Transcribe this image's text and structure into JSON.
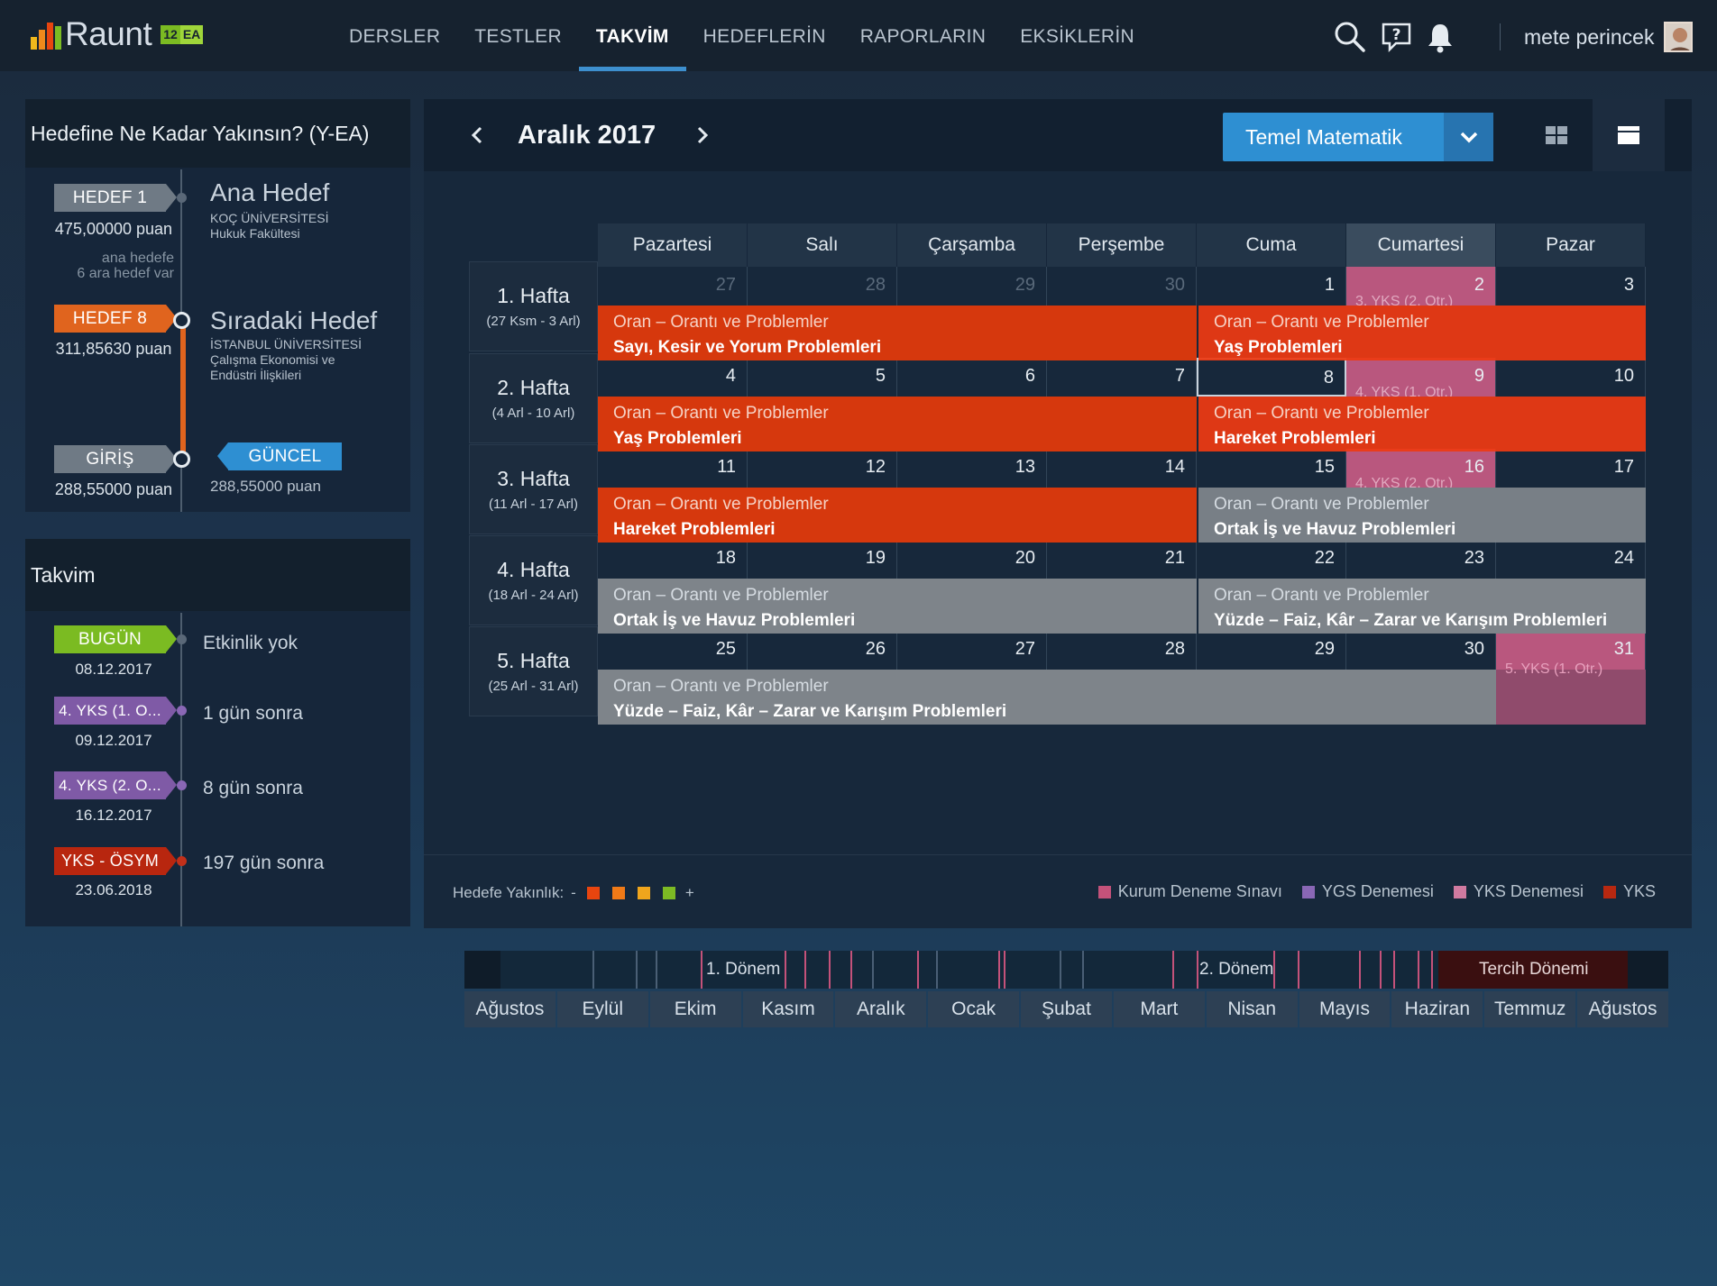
{
  "app": {
    "brand": "Raunt",
    "badge_num": "12",
    "badge_ea": "EA"
  },
  "nav": {
    "items": [
      "DERSLER",
      "TESTLER",
      "TAKVİM",
      "HEDEFLERİN",
      "RAPORLARIN",
      "EKSİKLERİN"
    ],
    "active": "TAKVİM"
  },
  "user": {
    "name": "mete perincek"
  },
  "goal": {
    "title": "Hedefine Ne Kadar Yakınsın? (Y-EA)",
    "h1_tag": "HEDEF 1",
    "h1_score": "475,00000 puan",
    "h1_title": "Ana Hedef",
    "h1_uni": "KOÇ ÜNİVERSİTESİ",
    "h1_dept": "Hukuk Fakültesi",
    "note1": "ana hedefe",
    "note2": "6 ara hedef var",
    "h8_tag": "HEDEF 8",
    "h8_score": "311,85630 puan",
    "h8_title": "Sıradaki Hedef",
    "h8_uni": "İSTANBUL ÜNİVERSİTESİ",
    "h8_dept1": "Çalışma Ekonomisi ve",
    "h8_dept2": "Endüstri İlişkileri",
    "giris_tag": "GİRİŞ",
    "giris_score": "288,55000 puan",
    "guncel_tag": "GÜNCEL",
    "guncel_score": "288,55000 puan"
  },
  "takvim": {
    "title": "Takvim",
    "items": [
      {
        "tag": "BUGÜN",
        "date": "08.12.2017",
        "text": "Etkinlik yok",
        "color": "#7bbb22"
      },
      {
        "tag": "4. YKS (1. O...",
        "date": "09.12.2017",
        "text": "1 gün sonra",
        "color": "#7f5aa6"
      },
      {
        "tag": "4. YKS (2. O...",
        "date": "16.12.2017",
        "text": "8 gün sonra",
        "color": "#7f5aa6"
      },
      {
        "tag": "YKS - ÖSYM",
        "date": "23.06.2018",
        "text": "197 gün sonra",
        "color": "#b8260f"
      }
    ]
  },
  "calendar": {
    "month_title": "Aralık 2017",
    "subject": "Temel Matematik",
    "days": [
      "Pazartesi",
      "Salı",
      "Çarşamba",
      "Perşembe",
      "Cuma",
      "Cumartesi",
      "Pazar"
    ],
    "weeks": [
      {
        "label": "1. Hafta",
        "range": "(27 Ksm - 3 Arl)",
        "dates": [
          "27",
          "28",
          "29",
          "30",
          "1",
          "2",
          "3"
        ]
      },
      {
        "label": "2. Hafta",
        "range": "(4 Arl - 10 Arl)",
        "dates": [
          "4",
          "5",
          "6",
          "7",
          "8",
          "9",
          "10"
        ]
      },
      {
        "label": "3. Hafta",
        "range": "(11 Arl - 17 Arl)",
        "dates": [
          "11",
          "12",
          "13",
          "14",
          "15",
          "16",
          "17"
        ]
      },
      {
        "label": "4. Hafta",
        "range": "(18 Arl - 24 Arl)",
        "dates": [
          "18",
          "19",
          "20",
          "21",
          "22",
          "23",
          "24"
        ]
      },
      {
        "label": "5. Hafta",
        "range": "(25 Arl - 31 Arl)",
        "dates": [
          "25",
          "26",
          "27",
          "28",
          "29",
          "30",
          "31"
        ]
      }
    ],
    "bars": [
      {
        "week": 0,
        "start": 0,
        "span": 4,
        "color": "orange",
        "l1": "Oran – Orantı ve Problemler",
        "l2": "Sayı, Kesir ve Yorum Problemleri"
      },
      {
        "week": 0,
        "start": 4,
        "span": 3,
        "color": "orange",
        "l1": "Oran – Orantı ve Problemler",
        "l2": "Yaş Problemleri"
      },
      {
        "week": 1,
        "start": 0,
        "span": 4,
        "color": "orange",
        "l1": "Oran – Orantı ve Problemler",
        "l2": "Yaş Problemleri"
      },
      {
        "week": 1,
        "start": 4,
        "span": 3,
        "color": "orange",
        "l1": "Oran – Orantı ve Problemler",
        "l2": "Hareket Problemleri"
      },
      {
        "week": 2,
        "start": 0,
        "span": 4,
        "color": "orange",
        "l1": "Oran – Orantı ve Problemler",
        "l2": "Hareket Problemleri"
      },
      {
        "week": 2,
        "start": 4,
        "span": 3,
        "color": "gray",
        "l1": "Oran – Orantı ve Problemler",
        "l2": "Ortak İş ve Havuz Problemleri"
      },
      {
        "week": 3,
        "start": 0,
        "span": 4,
        "color": "gray",
        "l1": "Oran – Orantı ve Problemler",
        "l2": "Ortak İş ve Havuz Problemleri"
      },
      {
        "week": 3,
        "start": 4,
        "span": 3,
        "color": "gray",
        "l1": "Oran – Orantı ve Problemler",
        "l2": "Yüzde – Faiz, Kâr – Zarar ve Karışım Problemleri"
      },
      {
        "week": 4,
        "start": 0,
        "span": 6,
        "color": "gray",
        "l1": "Oran – Orantı ve Problemler",
        "l2": "Yüzde – Faiz, Kâr – Zarar ve Karışım Problemleri"
      }
    ],
    "events": [
      {
        "week": 0,
        "day": 5,
        "label": "3. YKS (2. Otr.)"
      },
      {
        "week": 1,
        "day": 5,
        "label": "4. YKS (1. Otr.)"
      },
      {
        "week": 2,
        "day": 5,
        "label": "4. YKS (2. Otr.)"
      },
      {
        "week": 4,
        "day": 6,
        "label": "5. YKS (1. Otr.)"
      }
    ]
  },
  "legend": {
    "proximity_label": "Hedefe Yakınlık:",
    "minus": "-",
    "plus": "+",
    "proximity_colors": [
      "#e8450f",
      "#f07a17",
      "#f0a51c",
      "#7dbb24"
    ],
    "types": [
      {
        "label": "Kurum Deneme Sınavı",
        "color": "#c4527a"
      },
      {
        "label": "YGS Denemesi",
        "color": "#8a67b5"
      },
      {
        "label": "YKS Denemesi",
        "color": "#d07aa0"
      },
      {
        "label": "YKS",
        "color": "#b82810"
      }
    ]
  },
  "timeline": {
    "donem1": "1. Dönem",
    "donem2": "2. Dönem",
    "tercih": "Tercih Dönemi"
  },
  "months": [
    "Ağustos",
    "Eylül",
    "Ekim",
    "Kasım",
    "Aralık",
    "Ocak",
    "Şubat",
    "Mart",
    "Nisan",
    "Mayıs",
    "Haziran",
    "Temmuz",
    "Ağustos"
  ]
}
